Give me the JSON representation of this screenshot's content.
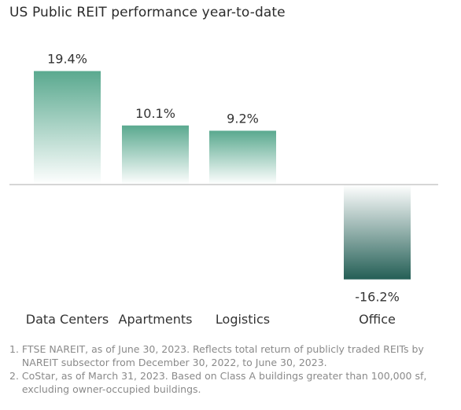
{
  "chart_data": {
    "type": "bar",
    "title": "US Public REIT performance year-to-date",
    "categories": [
      "Data Centers",
      "Apartments",
      "Logistics",
      "Office"
    ],
    "values": [
      19.4,
      10.1,
      9.2,
      -16.2
    ],
    "data_labels": [
      "19.4%",
      "10.1%",
      "9.2%",
      "-16.2%"
    ],
    "unit": "%",
    "ylim": [
      -16.2,
      19.4
    ],
    "xlabel": "",
    "ylabel": "",
    "grid": false,
    "legend": "none",
    "colors": {
      "bar_top": "#5aa98f",
      "bar_fade": "#ffffff",
      "neg_bottom": "#245f56",
      "baseline": "#c8c8c8",
      "label": "#333333"
    }
  },
  "footnotes": [
    {
      "num": "1.",
      "text": "FTSE NAREIT, as of June 30, 2023. Reflects total return of publicly traded REITs by NAREIT subsector from December 30, 2022, to June 30, 2023."
    },
    {
      "num": "2.",
      "text": "CoStar, as of March 31, 2023. Based on Class A buildings greater than 100,000 sf, excluding owner-occupied buildings."
    }
  ]
}
